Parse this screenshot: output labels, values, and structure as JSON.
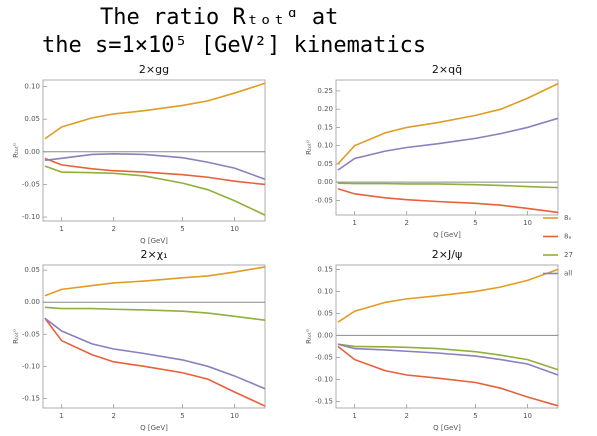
{
  "title": [
    "The ratio Rₜₒₜᵅ at",
    "the s=1×10⁵ [GeV²] kinematics"
  ],
  "chart_data": [
    {
      "type": "line",
      "title": "2×gg",
      "xlabel": "Q [GeV]",
      "ylabel": "Rₜₒₜᵅ",
      "log_x": true,
      "xlim": [
        0.78,
        15
      ],
      "xticks": [
        1,
        2,
        5,
        10
      ],
      "ylim": [
        -0.106,
        0.11
      ],
      "yticks": [
        {
          "value": -0.1,
          "label": "-0.10"
        },
        -0.05,
        {
          "value": 0,
          "label": "0.00"
        },
        0.05,
        {
          "value": 0.1,
          "label": "0.10"
        }
      ],
      "x": [
        0.8,
        1,
        1.5,
        2,
        3,
        5,
        7,
        10,
        15
      ],
      "series": [
        {
          "name": "8ₛ",
          "color": "#e19c24",
          "values": [
            0.02,
            0.038,
            0.052,
            0.058,
            0.063,
            0.071,
            0.078,
            0.09,
            0.105
          ]
        },
        {
          "name": "8ₐ",
          "color": "#e8603a",
          "values": [
            -0.01,
            -0.02,
            -0.026,
            -0.029,
            -0.031,
            -0.035,
            -0.039,
            -0.045,
            -0.05
          ]
        },
        {
          "name": "27",
          "color": "#8fb03a",
          "values": [
            -0.022,
            -0.031,
            -0.032,
            -0.033,
            -0.037,
            -0.048,
            -0.058,
            -0.075,
            -0.097
          ]
        },
        {
          "name": "all",
          "color": "#8b7fbd",
          "values": [
            -0.013,
            -0.01,
            -0.004,
            -0.003,
            -0.004,
            -0.009,
            -0.016,
            -0.025,
            -0.042
          ]
        }
      ]
    },
    {
      "type": "line",
      "title": "2×qq̄",
      "xlabel": "Q [GeV]",
      "ylabel": "Rₜₒₜᵅ",
      "log_x": true,
      "xlim": [
        0.78,
        15
      ],
      "xticks": [
        1,
        2,
        5,
        10
      ],
      "ylim": [
        -0.09,
        0.28
      ],
      "yticks": [
        -0.05,
        {
          "value": 0,
          "label": "0.00"
        },
        0.05,
        {
          "value": 0.1,
          "label": "0.10"
        },
        0.15,
        {
          "value": 0.2,
          "label": "0.20"
        },
        0.25
      ],
      "x": [
        0.8,
        1,
        1.5,
        2,
        3,
        5,
        7,
        10,
        15
      ],
      "series": [
        {
          "name": "8ₛ",
          "color": "#e19c24",
          "values": [
            0.05,
            0.1,
            0.135,
            0.15,
            0.163,
            0.183,
            0.2,
            0.23,
            0.27
          ]
        },
        {
          "name": "8ₐ",
          "color": "#e8603a",
          "values": [
            -0.018,
            -0.032,
            -0.043,
            -0.048,
            -0.053,
            -0.058,
            -0.063,
            -0.072,
            -0.083
          ]
        },
        {
          "name": "27",
          "color": "#8fb03a",
          "values": [
            -0.003,
            -0.004,
            -0.004,
            -0.005,
            -0.005,
            -0.007,
            -0.009,
            -0.012,
            -0.015
          ]
        },
        {
          "name": "all",
          "color": "#8b7fbd",
          "values": [
            0.033,
            0.065,
            0.085,
            0.095,
            0.105,
            0.12,
            0.133,
            0.15,
            0.175
          ]
        }
      ]
    },
    {
      "type": "line",
      "title": "2×χ₁",
      "xlabel": "Q [GeV]",
      "ylabel": "Rₜₒₜᵅ",
      "log_x": true,
      "xlim": [
        0.78,
        15
      ],
      "xticks": [
        1,
        2,
        5,
        10
      ],
      "ylim": [
        -0.165,
        0.058
      ],
      "yticks": [
        -0.15,
        {
          "value": -0.1,
          "label": "-0.10"
        },
        -0.05,
        {
          "value": 0,
          "label": "0.00"
        },
        0.05
      ],
      "x": [
        0.8,
        1,
        1.5,
        2,
        3,
        5,
        7,
        10,
        15
      ],
      "series": [
        {
          "name": "8ₛ",
          "color": "#e19c24",
          "values": [
            0.01,
            0.02,
            0.026,
            0.03,
            0.033,
            0.038,
            0.041,
            0.047,
            0.055
          ]
        },
        {
          "name": "8ₐ",
          "color": "#e8603a",
          "values": [
            -0.025,
            -0.06,
            -0.082,
            -0.093,
            -0.1,
            -0.11,
            -0.12,
            -0.14,
            -0.162
          ]
        },
        {
          "name": "27",
          "color": "#8fb03a",
          "values": [
            -0.008,
            -0.01,
            -0.01,
            -0.011,
            -0.012,
            -0.014,
            -0.017,
            -0.022,
            -0.028
          ]
        },
        {
          "name": "all",
          "color": "#8b7fbd",
          "values": [
            -0.025,
            -0.045,
            -0.065,
            -0.073,
            -0.08,
            -0.09,
            -0.1,
            -0.115,
            -0.135
          ]
        }
      ]
    },
    {
      "type": "line",
      "title": "2×J/ψ",
      "xlabel": "Q [GeV]",
      "ylabel": "Rₜₒₜᵅ",
      "log_x": true,
      "xlim": [
        0.78,
        15
      ],
      "xticks": [
        1,
        2,
        5,
        10
      ],
      "ylim": [
        -0.165,
        0.16
      ],
      "yticks": [
        -0.15,
        {
          "value": -0.1,
          "label": "-0.10"
        },
        -0.05,
        {
          "value": 0,
          "label": "0.00"
        },
        0.05,
        {
          "value": 0.1,
          "label": "0.10"
        },
        0.15
      ],
      "x": [
        0.8,
        1,
        1.5,
        2,
        3,
        5,
        7,
        10,
        15
      ],
      "series": [
        {
          "name": "8ₛ",
          "color": "#e19c24",
          "values": [
            0.03,
            0.055,
            0.075,
            0.083,
            0.09,
            0.1,
            0.11,
            0.125,
            0.15
          ]
        },
        {
          "name": "8ₐ",
          "color": "#e8603a",
          "values": [
            -0.025,
            -0.055,
            -0.08,
            -0.09,
            -0.097,
            -0.107,
            -0.12,
            -0.14,
            -0.16
          ]
        },
        {
          "name": "27",
          "color": "#8fb03a",
          "values": [
            -0.02,
            -0.025,
            -0.026,
            -0.027,
            -0.03,
            -0.037,
            -0.045,
            -0.055,
            -0.078
          ]
        },
        {
          "name": "all",
          "color": "#8b7fbd",
          "values": [
            -0.02,
            -0.03,
            -0.033,
            -0.036,
            -0.04,
            -0.047,
            -0.055,
            -0.065,
            -0.09
          ]
        }
      ]
    }
  ]
}
